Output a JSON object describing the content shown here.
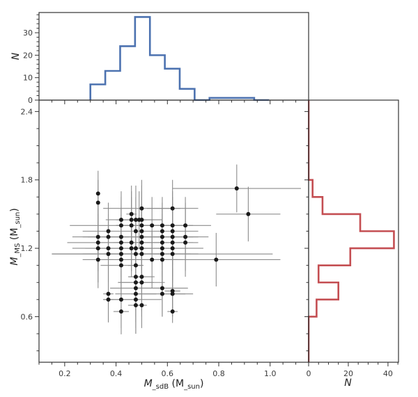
{
  "chart_data": [
    {
      "panel": "main",
      "type": "scatter",
      "xlabel": "M_sdB (M_sun)",
      "xlabel_parts": {
        "main": "M",
        "sub": "sdB",
        "unit": " (M",
        "sun": "⊙",
        "close": ")"
      },
      "ylabel": "M_MS (M_sun)",
      "ylabel_parts": {
        "main": "M",
        "sub": "MS",
        "unit": " (M",
        "sun": "⊙",
        "close": ")"
      },
      "xlim": [
        0.1,
        1.15
      ],
      "ylim": [
        0.2,
        2.5
      ],
      "xticks": [
        0.2,
        0.4,
        0.6,
        0.8,
        1.0
      ],
      "xtick_labels": [
        "0.2",
        "0.4",
        "0.6",
        "0.8",
        "1.0"
      ],
      "yticks": [
        0.6,
        1.2,
        1.8,
        2.4
      ],
      "ytick_labels": [
        "0.6",
        "1.2",
        "1.8",
        "2.4"
      ],
      "grid": false,
      "point_color": "#1a1a1a",
      "errorbar_color": "#8c8c8c",
      "points": [
        {
          "x": 0.33,
          "y": 1.68,
          "xerr": 0.0,
          "yerr": 0.2
        },
        {
          "x": 0.33,
          "y": 1.6,
          "xerr": 0.0,
          "yerr": 0.2
        },
        {
          "x": 0.33,
          "y": 1.3,
          "xerr": 0.1,
          "yerr": 0.25
        },
        {
          "x": 0.33,
          "y": 1.25,
          "xerr": 0.12,
          "yerr": 0.25
        },
        {
          "x": 0.33,
          "y": 1.2,
          "xerr": 0.1,
          "yerr": 0.3
        },
        {
          "x": 0.33,
          "y": 1.1,
          "xerr": 0.06,
          "yerr": 0.25
        },
        {
          "x": 0.37,
          "y": 1.35,
          "xerr": 0.1,
          "yerr": 0.25
        },
        {
          "x": 0.37,
          "y": 1.3,
          "xerr": 0.08,
          "yerr": 0.2
        },
        {
          "x": 0.37,
          "y": 1.2,
          "xerr": 0.09,
          "yerr": 0.25
        },
        {
          "x": 0.37,
          "y": 1.15,
          "xerr": 0.1,
          "yerr": 0.25
        },
        {
          "x": 0.37,
          "y": 0.8,
          "xerr": 0.02,
          "yerr": 0.25
        },
        {
          "x": 0.37,
          "y": 0.75,
          "xerr": 0.02,
          "yerr": 0.2
        },
        {
          "x": 0.42,
          "y": 1.45,
          "xerr": 0.06,
          "yerr": 0.25
        },
        {
          "x": 0.42,
          "y": 1.4,
          "xerr": 0.2,
          "yerr": 0.25
        },
        {
          "x": 0.42,
          "y": 1.3,
          "xerr": 0.15,
          "yerr": 0.25
        },
        {
          "x": 0.42,
          "y": 1.25,
          "xerr": 0.08,
          "yerr": 0.3
        },
        {
          "x": 0.42,
          "y": 1.2,
          "xerr": 0.1,
          "yerr": 0.3
        },
        {
          "x": 0.42,
          "y": 1.15,
          "xerr": 0.27,
          "yerr": 0.3
        },
        {
          "x": 0.42,
          "y": 1.1,
          "xerr": 0.07,
          "yerr": 0.3
        },
        {
          "x": 0.42,
          "y": 1.05,
          "xerr": 0.08,
          "yerr": 0.3
        },
        {
          "x": 0.42,
          "y": 0.75,
          "xerr": 0.07,
          "yerr": 0.25
        },
        {
          "x": 0.42,
          "y": 0.645,
          "xerr": 0.03,
          "yerr": 0.2
        },
        {
          "x": 0.46,
          "y": 1.5,
          "xerr": 0.02,
          "yerr": 0.25
        },
        {
          "x": 0.46,
          "y": 1.45,
          "xerr": 0.06,
          "yerr": 0.25
        },
        {
          "x": 0.46,
          "y": 1.4,
          "xerr": 0.06,
          "yerr": 0.25
        },
        {
          "x": 0.46,
          "y": 1.25,
          "xerr": 0.07,
          "yerr": 0.25
        },
        {
          "x": 0.46,
          "y": 1.2,
          "xerr": 0.04,
          "yerr": 0.25
        },
        {
          "x": 0.477,
          "y": 1.45,
          "xerr": 0.07,
          "yerr": 0.3
        },
        {
          "x": 0.477,
          "y": 1.35,
          "xerr": 0.05,
          "yerr": 0.3
        },
        {
          "x": 0.477,
          "y": 1.2,
          "xerr": 0.06,
          "yerr": 0.3
        },
        {
          "x": 0.477,
          "y": 1.15,
          "xerr": 0.04,
          "yerr": 0.3
        },
        {
          "x": 0.477,
          "y": 1.05,
          "xerr": 0.03,
          "yerr": 0.3
        },
        {
          "x": 0.477,
          "y": 0.95,
          "xerr": 0.03,
          "yerr": 0.3
        },
        {
          "x": 0.477,
          "y": 0.9,
          "xerr": 0.07,
          "yerr": 0.3
        },
        {
          "x": 0.477,
          "y": 0.85,
          "xerr": 0.1,
          "yerr": 0.3
        },
        {
          "x": 0.477,
          "y": 0.8,
          "xerr": 0.08,
          "yerr": 0.3
        },
        {
          "x": 0.477,
          "y": 0.75,
          "xerr": 0.1,
          "yerr": 0.3
        },
        {
          "x": 0.477,
          "y": 0.7,
          "xerr": 0.03,
          "yerr": 0.25
        },
        {
          "x": 0.49,
          "y": 1.45,
          "xerr": 0.09,
          "yerr": 0.25
        },
        {
          "x": 0.5,
          "y": 1.55,
          "xerr": 0.15,
          "yerr": 0.25
        },
        {
          "x": 0.5,
          "y": 1.45,
          "xerr": 0.08,
          "yerr": 0.3
        },
        {
          "x": 0.5,
          "y": 1.4,
          "xerr": 0.1,
          "yerr": 0.3
        },
        {
          "x": 0.5,
          "y": 1.35,
          "xerr": 0.12,
          "yerr": 0.3
        },
        {
          "x": 0.5,
          "y": 1.3,
          "xerr": 0.15,
          "yerr": 0.3
        },
        {
          "x": 0.5,
          "y": 1.25,
          "xerr": 0.1,
          "yerr": 0.3
        },
        {
          "x": 0.5,
          "y": 1.2,
          "xerr": 0.12,
          "yerr": 0.3
        },
        {
          "x": 0.5,
          "y": 1.15,
          "xerr": 0.15,
          "yerr": 0.3
        },
        {
          "x": 0.5,
          "y": 0.95,
          "xerr": 0.05,
          "yerr": 0.3
        },
        {
          "x": 0.5,
          "y": 0.9,
          "xerr": 0.09,
          "yerr": 0.3
        },
        {
          "x": 0.5,
          "y": 0.7,
          "xerr": 0.02,
          "yerr": 0.2
        },
        {
          "x": 0.54,
          "y": 1.4,
          "xerr": 0.1,
          "yerr": 0.25
        },
        {
          "x": 0.54,
          "y": 1.1,
          "xerr": 0.1,
          "yerr": 0.25
        },
        {
          "x": 0.58,
          "y": 1.4,
          "xerr": 0.08,
          "yerr": 0.25
        },
        {
          "x": 0.58,
          "y": 1.35,
          "xerr": 0.1,
          "yerr": 0.25
        },
        {
          "x": 0.58,
          "y": 1.3,
          "xerr": 0.12,
          "yerr": 0.25
        },
        {
          "x": 0.58,
          "y": 1.25,
          "xerr": 0.08,
          "yerr": 0.3
        },
        {
          "x": 0.58,
          "y": 1.2,
          "xerr": 0.1,
          "yerr": 0.3
        },
        {
          "x": 0.58,
          "y": 1.15,
          "xerr": 0.43,
          "yerr": 0.3
        },
        {
          "x": 0.58,
          "y": 1.1,
          "xerr": 0.08,
          "yerr": 0.3
        },
        {
          "x": 0.58,
          "y": 0.85,
          "xerr": 0.1,
          "yerr": 0.25
        },
        {
          "x": 0.58,
          "y": 0.8,
          "xerr": 0.12,
          "yerr": 0.2
        },
        {
          "x": 0.62,
          "y": 1.55,
          "xerr": 0.1,
          "yerr": 0.25
        },
        {
          "x": 0.62,
          "y": 1.4,
          "xerr": 0.15,
          "yerr": 0.3
        },
        {
          "x": 0.62,
          "y": 1.35,
          "xerr": 0.1,
          "yerr": 0.3
        },
        {
          "x": 0.62,
          "y": 1.3,
          "xerr": 0.14,
          "yerr": 0.3
        },
        {
          "x": 0.62,
          "y": 1.25,
          "xerr": 0.1,
          "yerr": 0.3
        },
        {
          "x": 0.62,
          "y": 1.2,
          "xerr": 0.12,
          "yerr": 0.3
        },
        {
          "x": 0.62,
          "y": 1.15,
          "xerr": 0.1,
          "yerr": 0.3
        },
        {
          "x": 0.62,
          "y": 0.825,
          "xerr": 0.03,
          "yerr": 0.2
        },
        {
          "x": 0.62,
          "y": 0.8,
          "xerr": 0.05,
          "yerr": 0.2
        },
        {
          "x": 0.62,
          "y": 0.645,
          "xerr": 0.02,
          "yerr": 0.1
        },
        {
          "x": 0.67,
          "y": 1.4,
          "xerr": 0.03,
          "yerr": 0.25
        },
        {
          "x": 0.67,
          "y": 1.3,
          "xerr": 0.05,
          "yerr": 0.3
        },
        {
          "x": 0.67,
          "y": 1.25,
          "xerr": 0.03,
          "yerr": 0.3
        },
        {
          "x": 0.87,
          "y": 1.725,
          "xerr": 0.25,
          "yerr": 0.21
        },
        {
          "x": 0.915,
          "y": 1.5,
          "xerr": 0.125,
          "yerr": 0.24
        },
        {
          "x": 0.79,
          "y": 1.1,
          "xerr": 0.25,
          "yerr": 0.235
        }
      ]
    },
    {
      "panel": "top",
      "type": "histogram",
      "ylabel": "N",
      "color": "#4c72b0",
      "xlim": [
        0.1,
        1.15
      ],
      "ylim": [
        0,
        39
      ],
      "yticks": [
        0,
        10,
        20,
        30
      ],
      "ytick_labels": [
        "0",
        "10",
        "20",
        "30"
      ],
      "bin_edges": [
        0.3,
        0.358,
        0.416,
        0.474,
        0.532,
        0.59,
        0.648,
        0.706,
        0.764,
        0.822,
        0.88,
        0.938,
        0.996
      ],
      "counts": [
        7,
        13,
        24,
        37,
        20,
        14,
        5,
        0,
        1,
        1,
        1,
        0
      ]
    },
    {
      "panel": "right",
      "type": "histogram",
      "orientation": "horizontal",
      "xlabel": "N",
      "color": "#c44e52",
      "xlim": [
        0,
        45.3
      ],
      "ylim": [
        0.2,
        2.5
      ],
      "xticks": [
        0,
        20,
        40
      ],
      "xtick_labels": [
        "0",
        "20",
        "40"
      ],
      "bin_edges": [
        0.15,
        0.3,
        0.45,
        0.6,
        0.75,
        0.9,
        1.05,
        1.2,
        1.35,
        1.5,
        1.65,
        1.8,
        1.95,
        2.1,
        2.25,
        2.4,
        2.55
      ],
      "counts": [
        0,
        0,
        0,
        4,
        15,
        5,
        21,
        43,
        26,
        7,
        2,
        0,
        0,
        0,
        0,
        0
      ]
    }
  ]
}
